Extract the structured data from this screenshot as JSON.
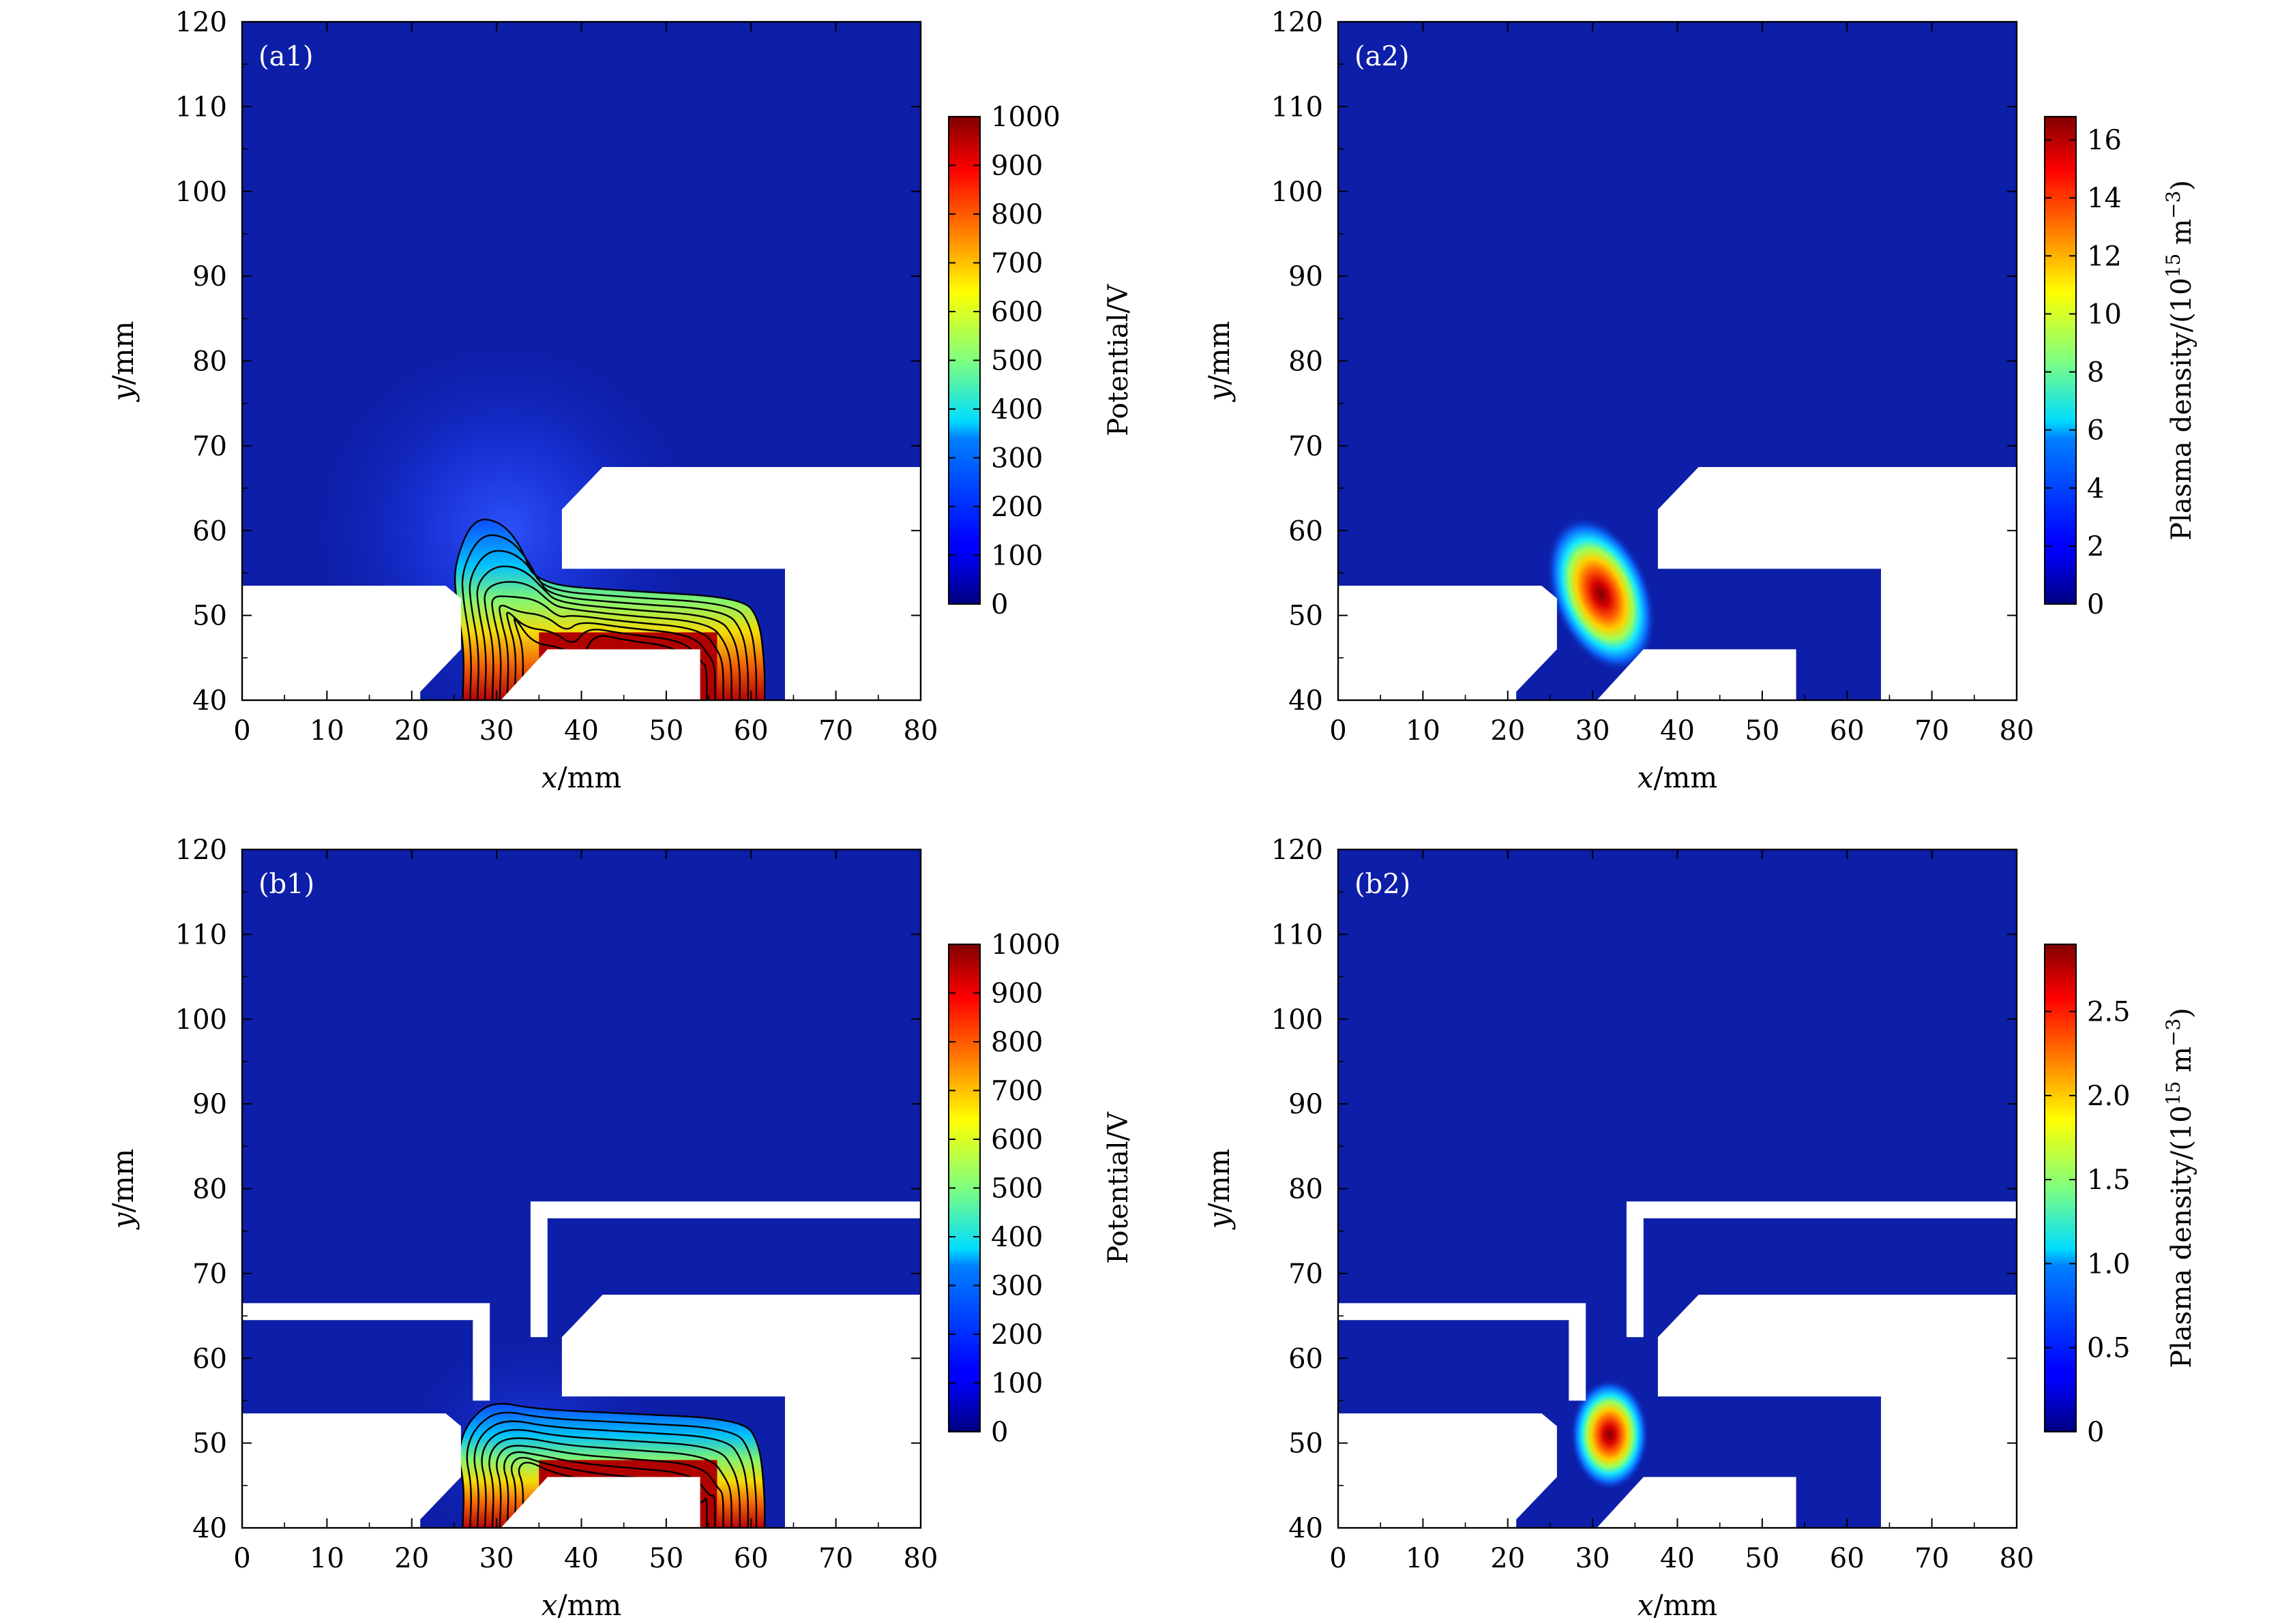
{
  "chart_data": [
    {
      "panel": "(a1)",
      "type": "heatmap",
      "quantity": "potential",
      "xlabel": "x/mm",
      "ylabel": "y/mm",
      "xlim": [
        0,
        80
      ],
      "ylim": [
        40,
        120
      ],
      "xticks": [
        0,
        10,
        20,
        30,
        40,
        50,
        60,
        70,
        80
      ],
      "yticks": [
        40,
        50,
        60,
        70,
        80,
        90,
        100,
        110,
        120
      ],
      "colorbar": {
        "label": "Potential/V",
        "min": 0,
        "max": 1000,
        "ticks": [
          0,
          100,
          200,
          300,
          400,
          500,
          600,
          700,
          800,
          900,
          1000
        ],
        "colormap": "jet"
      },
      "contour_levels_V": [
        100,
        200,
        300,
        400,
        500,
        600,
        700,
        800,
        900
      ],
      "grid": false
    },
    {
      "panel": "(a2)",
      "type": "heatmap",
      "quantity": "plasma density",
      "xlabel": "x/mm",
      "ylabel": "y/mm",
      "xlim": [
        0,
        80
      ],
      "ylim": [
        40,
        120
      ],
      "xticks": [
        0,
        10,
        20,
        30,
        40,
        50,
        60,
        70,
        80
      ],
      "yticks": [
        40,
        50,
        60,
        70,
        80,
        90,
        100,
        110,
        120
      ],
      "colorbar": {
        "label": "Plasma density/(10^15 m^-3)",
        "label_main": "Plasma density/(10",
        "label_sup1": "15",
        "label_mid": " m",
        "label_sup2": "−3",
        "label_end": ")",
        "min": 0,
        "max": 16.8,
        "ticks": [
          0,
          2,
          4,
          6,
          8,
          10,
          12,
          14,
          16
        ],
        "colormap": "jet"
      },
      "peak": {
        "x": 31,
        "y": 52.5,
        "value": 16.8
      },
      "grid": false
    },
    {
      "panel": "(b1)",
      "type": "heatmap",
      "quantity": "potential",
      "xlabel": "x/mm",
      "ylabel": "y/mm",
      "xlim": [
        0,
        80
      ],
      "ylim": [
        40,
        120
      ],
      "xticks": [
        0,
        10,
        20,
        30,
        40,
        50,
        60,
        70,
        80
      ],
      "yticks": [
        40,
        50,
        60,
        70,
        80,
        90,
        100,
        110,
        120
      ],
      "colorbar": {
        "label": "Potential/V",
        "min": 0,
        "max": 1000,
        "ticks": [
          0,
          100,
          200,
          300,
          400,
          500,
          600,
          700,
          800,
          900,
          1000
        ],
        "colormap": "jet"
      },
      "contour_levels_V": [
        100,
        200,
        300,
        400,
        500,
        600,
        700,
        800,
        900
      ],
      "grid": false
    },
    {
      "panel": "(b2)",
      "type": "heatmap",
      "quantity": "plasma density",
      "xlabel": "x/mm",
      "ylabel": "y/mm",
      "xlim": [
        0,
        80
      ],
      "ylim": [
        40,
        120
      ],
      "xticks": [
        0,
        10,
        20,
        30,
        40,
        50,
        60,
        70,
        80
      ],
      "yticks": [
        40,
        50,
        60,
        70,
        80,
        90,
        100,
        110,
        120
      ],
      "colorbar": {
        "label": "Plasma density/(10^15 m^-3)",
        "label_main": "Plasma density/(10",
        "label_sup1": "15",
        "label_mid": " m",
        "label_sup2": "−3",
        "label_end": ")",
        "min": 0,
        "max": 2.9,
        "ticks": [
          0,
          0.5,
          1.0,
          1.5,
          2.0,
          2.5
        ],
        "tick_labels": [
          "0",
          "0.5",
          "1.0",
          "1.5",
          "2.0",
          "2.5"
        ],
        "colormap": "jet"
      },
      "peak": {
        "x": 32,
        "y": 51,
        "value": 2.9
      },
      "grid": false
    }
  ],
  "colors": {
    "background_field": "#0d1ea8",
    "electrode": "#ffffff",
    "contour": "#000000"
  }
}
